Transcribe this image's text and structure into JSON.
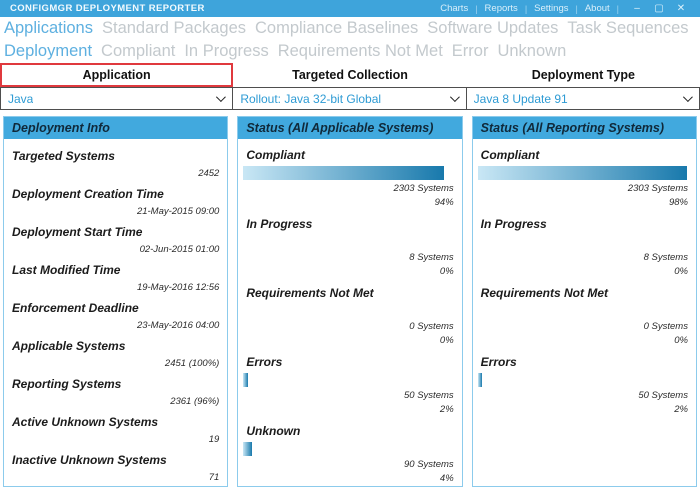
{
  "titlebar": {
    "title": "CONFIGMGR DEPLOYMENT REPORTER",
    "menu": [
      "Charts",
      "Reports",
      "Settings",
      "About"
    ],
    "window_controls": [
      {
        "name": "minimize",
        "glyph": "–"
      },
      {
        "name": "maximize",
        "glyph": "▢"
      },
      {
        "name": "close",
        "glyph": "✕"
      }
    ]
  },
  "nav_primary": [
    {
      "label": "Applications",
      "active": true
    },
    {
      "label": "Standard Packages",
      "active": false
    },
    {
      "label": "Compliance Baselines",
      "active": false
    },
    {
      "label": "Software Updates",
      "active": false
    },
    {
      "label": "Task Sequences",
      "active": false
    }
  ],
  "nav_secondary": [
    {
      "label": "Deployment",
      "active": true
    },
    {
      "label": "Compliant",
      "active": false
    },
    {
      "label": "In Progress",
      "active": false
    },
    {
      "label": "Requirements Not Met",
      "active": false
    },
    {
      "label": "Error",
      "active": false
    },
    {
      "label": "Unknown",
      "active": false
    }
  ],
  "selectors": [
    {
      "header": "Application",
      "value": "Java",
      "highlighted": true
    },
    {
      "header": "Targeted Collection",
      "value": "Rollout: Java 32-bit Global",
      "highlighted": false
    },
    {
      "header": "Deployment Type",
      "value": "Java 8 Update 91",
      "highlighted": false
    }
  ],
  "deployment_info": {
    "title": "Deployment Info",
    "rows": [
      {
        "label": "Targeted Systems",
        "value": "2452"
      },
      {
        "label": "Deployment Creation Time",
        "value": "21-May-2015 09:00"
      },
      {
        "label": "Deployment Start Time",
        "value": "02-Jun-2015 01:00"
      },
      {
        "label": "Last Modified Time",
        "value": "19-May-2016 12:56"
      },
      {
        "label": "Enforcement Deadline",
        "value": "23-May-2016 04:00"
      },
      {
        "label": "Applicable Systems",
        "value": "2451 (100%)"
      },
      {
        "label": "Reporting Systems",
        "value": "2361 (96%)"
      },
      {
        "label": "Active Unknown Systems",
        "value": "19"
      },
      {
        "label": "Inactive Unknown Systems",
        "value": "71"
      }
    ]
  },
  "status_panels": [
    {
      "id": "status-applicable",
      "title": "Status (All Applicable Systems)",
      "sections": [
        {
          "label": "Compliant",
          "systems": "2303 Systems",
          "pct_label": "94%",
          "pct": 94
        },
        {
          "label": "In Progress",
          "systems": "8 Systems",
          "pct_label": "0%",
          "pct": 0
        },
        {
          "label": "Requirements Not Met",
          "systems": "0 Systems",
          "pct_label": "0%",
          "pct": 0
        },
        {
          "label": "Errors",
          "systems": "50 Systems",
          "pct_label": "2%",
          "pct": 2
        },
        {
          "label": "Unknown",
          "systems": "90 Systems",
          "pct_label": "4%",
          "pct": 4
        }
      ]
    },
    {
      "id": "status-reporting",
      "title": "Status (All Reporting Systems)",
      "sections": [
        {
          "label": "Compliant",
          "systems": "2303 Systems",
          "pct_label": "98%",
          "pct": 98
        },
        {
          "label": "In Progress",
          "systems": "8 Systems",
          "pct_label": "0%",
          "pct": 0
        },
        {
          "label": "Requirements Not Met",
          "systems": "0 Systems",
          "pct_label": "0%",
          "pct": 0
        },
        {
          "label": "Errors",
          "systems": "50 Systems",
          "pct_label": "2%",
          "pct": 2
        }
      ]
    }
  ],
  "colors": {
    "titlebar_bg": "#3EA4DB",
    "panel_header_bg": "#41A9DE",
    "panel_border": "#8CCBEC",
    "nav_active": "#5EB0E0",
    "nav_inactive": "#C3C9CD",
    "combo_text": "#2E9BD4",
    "highlight_border": "#E0393E",
    "bar_gradient_start": "#C9E7F5",
    "bar_gradient_end": "#1879AC"
  }
}
